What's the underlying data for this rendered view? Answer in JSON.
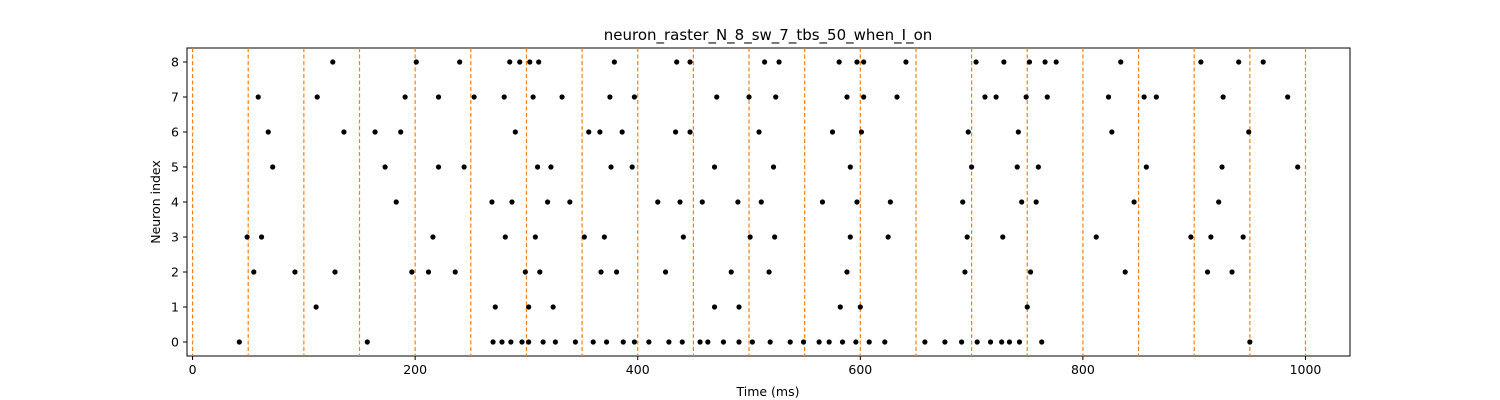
{
  "chart_data": {
    "type": "scatter",
    "title": "neuron_raster_N_8_sw_7_tbs_50_when_I_on",
    "xlabel": "Time (ms)",
    "ylabel": "Neuron index",
    "xlim": [
      -5,
      1040
    ],
    "ylim": [
      -0.4,
      8.4
    ],
    "xticks": [
      "0",
      "200",
      "400",
      "600",
      "800",
      "1000"
    ],
    "yticks": [
      "0",
      "1",
      "2",
      "3",
      "4",
      "5",
      "6",
      "7",
      "8"
    ],
    "grid": false,
    "legend": "none",
    "point_color": "#000000",
    "marker_lines": {
      "x": [
        0,
        50,
        100,
        150,
        200,
        250,
        300,
        350,
        400,
        450,
        500,
        550,
        600,
        650,
        700,
        750,
        800,
        850,
        900,
        950,
        1000
      ],
      "color": "#ff7f0e",
      "style": "dashed"
    },
    "spikes": [
      {
        "neuron": 0,
        "times": [
          42,
          157,
          270,
          278,
          286,
          296,
          302,
          315,
          326,
          344,
          360,
          372,
          387,
          397,
          410,
          428,
          440,
          456,
          463,
          477,
          491,
          503,
          519,
          537,
          549,
          563,
          572,
          584,
          596,
          608,
          622,
          658,
          676,
          691,
          705,
          717,
          727,
          734,
          743,
          763,
          950
        ]
      },
      {
        "neuron": 1,
        "times": [
          111,
          272,
          302,
          324,
          469,
          491,
          582,
          600,
          750
        ]
      },
      {
        "neuron": 2,
        "times": [
          55,
          92,
          128,
          197,
          212,
          236,
          299,
          312,
          367,
          381,
          425,
          484,
          518,
          588,
          694,
          753,
          838,
          912,
          934
        ]
      },
      {
        "neuron": 3,
        "times": [
          49,
          62,
          216,
          281,
          308,
          352,
          370,
          441,
          501,
          523,
          591,
          625,
          696,
          728,
          812,
          897,
          915,
          944
        ]
      },
      {
        "neuron": 4,
        "times": [
          183,
          269,
          287,
          319,
          339,
          418,
          438,
          458,
          490,
          511,
          566,
          597,
          627,
          692,
          745,
          758,
          846,
          922
        ]
      },
      {
        "neuron": 5,
        "times": [
          72,
          173,
          221,
          244,
          310,
          322,
          376,
          395,
          469,
          522,
          591,
          700,
          741,
          760,
          857,
          925,
          993
        ]
      },
      {
        "neuron": 6,
        "times": [
          68,
          136,
          164,
          187,
          290,
          356,
          366,
          386,
          434,
          447,
          509,
          575,
          601,
          697,
          742,
          826,
          949
        ]
      },
      {
        "neuron": 7,
        "times": [
          59,
          112,
          191,
          221,
          253,
          280,
          306,
          332,
          375,
          397,
          471,
          500,
          524,
          588,
          603,
          633,
          712,
          722,
          749,
          768,
          823,
          855,
          866,
          926,
          984
        ]
      },
      {
        "neuron": 8,
        "times": [
          126,
          201,
          240,
          285,
          294,
          303,
          311,
          379,
          435,
          447,
          514,
          527,
          581,
          597,
          603,
          641,
          704,
          729,
          752,
          766,
          776,
          834,
          906,
          940,
          962
        ]
      }
    ]
  }
}
